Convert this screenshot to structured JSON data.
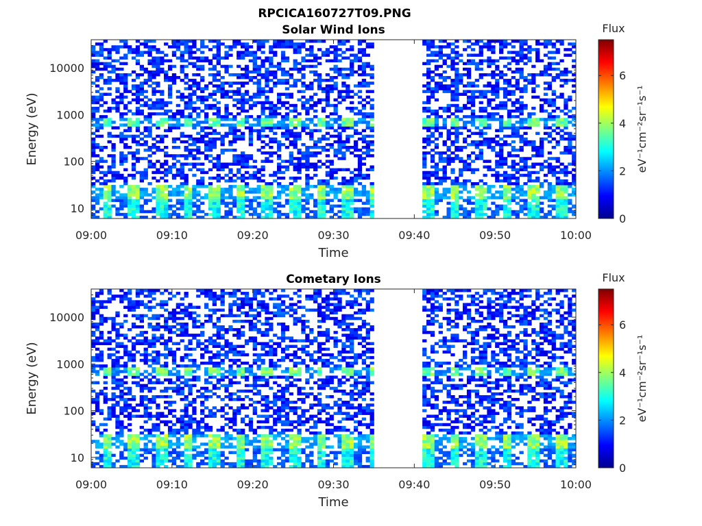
{
  "figure_title": "RPCICA160727T09.PNG",
  "chart_data": [
    {
      "type": "heatmap",
      "title": "Solar Wind Ions",
      "xlabel": "Time",
      "ylabel": "Energy (eV)",
      "x_ticks": [
        "09:00",
        "09:10",
        "09:20",
        "09:30",
        "09:40",
        "09:50",
        "10:00"
      ],
      "x_range": [
        "09:00",
        "10:00"
      ],
      "y_scale": "log",
      "y_range": [
        6,
        40000
      ],
      "y_ticks": [
        {
          "value": 10,
          "label": "10"
        },
        {
          "value": 100,
          "label": "100"
        },
        {
          "value": 1000,
          "label": "1000"
        },
        {
          "value": 10000,
          "label": "10000"
        }
      ],
      "colorbar": {
        "label": "Flux",
        "unit_label": "eV⁻¹cm⁻²sr⁻¹s⁻¹",
        "range": [
          0,
          7.5
        ],
        "ticks": [
          0,
          2,
          4,
          6
        ],
        "colormap": "jet"
      },
      "data_gap": [
        "09:35",
        "09:41"
      ],
      "bands": [
        {
          "energy_range": [
            600,
            900
          ],
          "level": 3.0
        },
        {
          "energy_range": [
            15,
            30
          ],
          "level": 3.3
        },
        {
          "energy_range": [
            6,
            15
          ],
          "level": 2.3
        },
        {
          "energy_range": [
            30,
            40000
          ],
          "level": 1.1
        }
      ],
      "grid": false
    },
    {
      "type": "heatmap",
      "title": "Cometary Ions",
      "xlabel": "Time",
      "ylabel": "Energy (eV)",
      "x_ticks": [
        "09:00",
        "09:10",
        "09:20",
        "09:30",
        "09:40",
        "09:50",
        "10:00"
      ],
      "x_range": [
        "09:00",
        "10:00"
      ],
      "y_scale": "log",
      "y_range": [
        6,
        40000
      ],
      "y_ticks": [
        {
          "value": 10,
          "label": "10"
        },
        {
          "value": 100,
          "label": "100"
        },
        {
          "value": 1000,
          "label": "1000"
        },
        {
          "value": 10000,
          "label": "10000"
        }
      ],
      "colorbar": {
        "label": "Flux",
        "unit_label": "eV⁻¹cm⁻²sr⁻¹s⁻¹",
        "range": [
          0,
          7.5
        ],
        "ticks": [
          0,
          2,
          4,
          6
        ],
        "colormap": "jet"
      },
      "data_gap": [
        "09:35",
        "09:41"
      ],
      "bands": [
        {
          "energy_range": [
            600,
            900
          ],
          "level": 3.0
        },
        {
          "energy_range": [
            15,
            30
          ],
          "level": 3.3
        },
        {
          "energy_range": [
            6,
            15
          ],
          "level": 2.3
        },
        {
          "energy_range": [
            30,
            40000
          ],
          "level": 1.1
        }
      ],
      "grid": false
    }
  ]
}
